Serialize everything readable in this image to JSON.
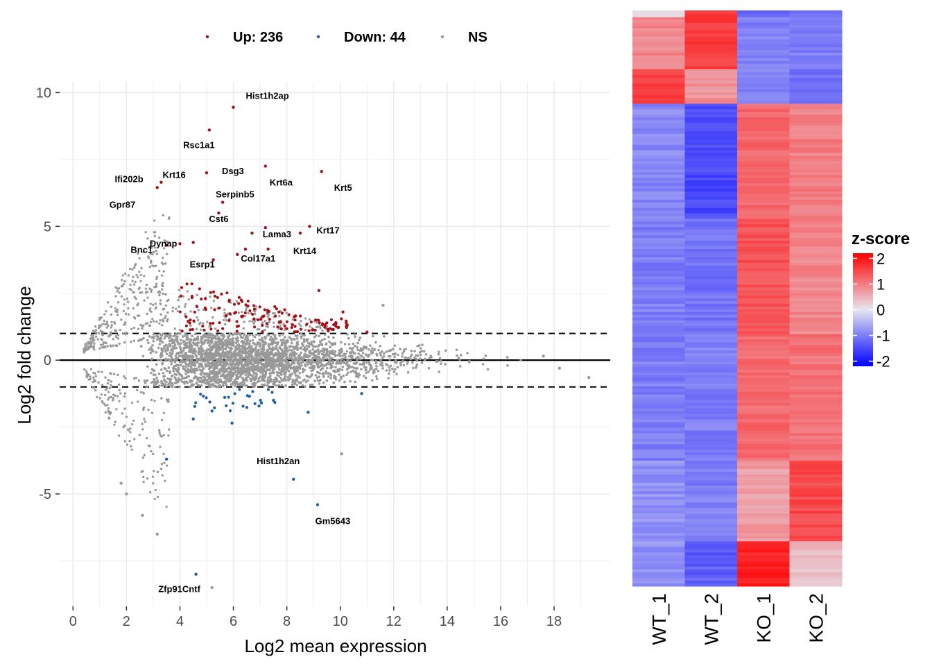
{
  "chart_data": [
    {
      "type": "scatter",
      "subtype": "MA-plot",
      "xlabel": "Log2 mean expression",
      "ylabel": "Log2 fold change",
      "xlim": [
        -0.5,
        20.1
      ],
      "ylim": [
        -9.2,
        10.4
      ],
      "x_ticks": [
        0,
        2,
        4,
        6,
        8,
        10,
        12,
        14,
        16,
        18
      ],
      "y_ticks": [
        -5,
        0,
        5,
        10
      ],
      "hlines": [
        {
          "y": 0,
          "style": "solid"
        },
        {
          "y": 1,
          "style": "dashed"
        },
        {
          "y": -1,
          "style": "dashed"
        }
      ],
      "grid": true,
      "legend_position": "top",
      "legend": [
        {
          "label": "Up: 236",
          "color": "#a50f15"
        },
        {
          "label": "Down: 44",
          "color": "#1f5fa5"
        },
        {
          "label": "NS",
          "color": "#999999"
        }
      ],
      "colors": {
        "up": "#a50f15",
        "down": "#1f5fa5",
        "ns": "#999999"
      },
      "series": [
        {
          "name": "Up: 236",
          "points": [
            [
              6.0,
              9.45
            ],
            [
              5.1,
              8.6
            ],
            [
              7.2,
              7.25
            ],
            [
              9.3,
              7.05
            ],
            [
              5.0,
              7.0
            ],
            [
              3.3,
              6.65
            ],
            [
              3.15,
              6.45
            ],
            [
              5.6,
              5.9
            ],
            [
              5.45,
              5.5
            ],
            [
              8.85,
              5.0
            ],
            [
              7.2,
              4.95
            ],
            [
              8.5,
              4.75
            ],
            [
              6.7,
              4.75
            ],
            [
              4.5,
              4.4
            ],
            [
              4.0,
              4.35
            ],
            [
              3.5,
              4.3
            ],
            [
              7.3,
              4.15
            ],
            [
              6.45,
              4.15
            ],
            [
              6.15,
              3.95
            ],
            [
              5.25,
              3.75
            ],
            [
              9.2,
              2.6
            ],
            [
              10.1,
              1.8
            ],
            [
              11.0,
              1.05
            ]
          ]
        },
        {
          "name": "Down: 44",
          "points": [
            [
              8.25,
              -4.45
            ],
            [
              9.15,
              -5.4
            ],
            [
              4.6,
              -8.0
            ],
            [
              3.5,
              -3.7
            ],
            [
              5.95,
              -2.35
            ],
            [
              4.5,
              -2.2
            ],
            [
              8.8,
              -1.95
            ],
            [
              7.5,
              -1.5
            ],
            [
              10.8,
              -1.25
            ],
            [
              6.6,
              -1.35
            ],
            [
              7.05,
              -1.6
            ],
            [
              5.2,
              -1.9
            ]
          ]
        },
        {
          "name": "NS",
          "points": [
            [
              19.3,
              -0.65
            ],
            [
              18.2,
              -0.3
            ],
            [
              17.6,
              0.15
            ],
            [
              11.6,
              2.05
            ],
            [
              10.05,
              -3.5
            ],
            [
              5.2,
              -8.5
            ],
            [
              3.15,
              -6.5
            ],
            [
              2.6,
              -5.8
            ],
            [
              2.0,
              -5.0
            ],
            [
              1.8,
              -4.6
            ]
          ]
        }
      ],
      "annotations": [
        {
          "text": "Hist1h2ap",
          "x": 6.0,
          "y": 9.45
        },
        {
          "text": "Rsc1a1",
          "x": 5.1,
          "y": 8.6
        },
        {
          "text": "Krt16",
          "x": 3.3,
          "y": 6.65
        },
        {
          "text": "Ifi202b",
          "x": 3.15,
          "y": 6.45
        },
        {
          "text": "Dsg3",
          "x": 5.0,
          "y": 7.0
        },
        {
          "text": "Krt6a",
          "x": 7.2,
          "y": 7.25
        },
        {
          "text": "Krt5",
          "x": 9.3,
          "y": 7.05
        },
        {
          "text": "Gpr87",
          "x": 2.75,
          "y": 5.95
        },
        {
          "text": "Serpinb5",
          "x": 5.6,
          "y": 5.9
        },
        {
          "text": "Lama3",
          "x": 7.2,
          "y": 4.95
        },
        {
          "text": "Krt17",
          "x": 8.85,
          "y": 5.0
        },
        {
          "text": "Dynap",
          "x": 4.0,
          "y": 4.35
        },
        {
          "text": "Cst6",
          "x": 5.45,
          "y": 5.5
        },
        {
          "text": "Col17a1",
          "x": 6.15,
          "y": 3.95
        },
        {
          "text": "Krt14",
          "x": 8.5,
          "y": 4.75
        },
        {
          "text": "Bnc1",
          "x": 3.5,
          "y": 4.3
        },
        {
          "text": "Esrp1",
          "x": 5.25,
          "y": 3.75
        },
        {
          "text": "Hist1h2an",
          "x": 8.25,
          "y": -4.45
        },
        {
          "text": "Gm5643",
          "x": 9.15,
          "y": -5.4
        },
        {
          "text": "Zfp91Cntf",
          "x": 4.6,
          "y": -8.0
        }
      ]
    },
    {
      "type": "heatmap",
      "columns": [
        "WT_1",
        "WT_2",
        "KO_1",
        "KO_2"
      ],
      "colorbar_title": "z-score",
      "colorbar_range": [
        -2.2,
        2.2
      ],
      "colorbar_ticks": [
        2,
        1,
        0,
        -1,
        -2
      ],
      "colors": {
        "low": "#0000ff",
        "mid": "#e6e6f0",
        "high": "#ff0000"
      },
      "row_blocks": [
        {
          "fraction": 0.012,
          "values": [
            0.2,
            1.6,
            -1.3,
            -1.1
          ]
        },
        {
          "fraction": 0.09,
          "values": [
            0.9,
            1.6,
            -1.0,
            -1.0
          ]
        },
        {
          "fraction": 0.06,
          "values": [
            1.6,
            0.8,
            -0.9,
            -1.1
          ]
        },
        {
          "fraction": 0.2,
          "values": [
            -0.9,
            -1.5,
            1.2,
            1.0
          ]
        },
        {
          "fraction": 0.2,
          "values": [
            -1.0,
            -1.1,
            1.4,
            0.9
          ]
        },
        {
          "fraction": 0.22,
          "values": [
            -1.0,
            -1.0,
            1.2,
            1.1
          ]
        },
        {
          "fraction": 0.14,
          "values": [
            -0.8,
            -1.0,
            0.7,
            1.5
          ]
        },
        {
          "fraction": 0.078,
          "values": [
            -0.8,
            -1.3,
            1.9,
            0.4
          ]
        }
      ]
    }
  ]
}
